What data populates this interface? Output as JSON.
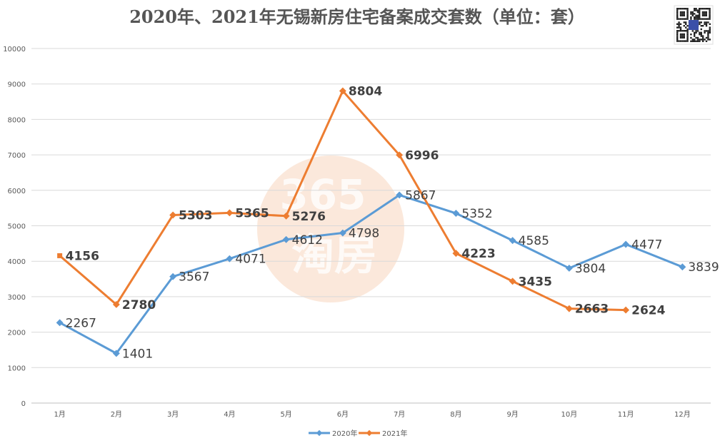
{
  "chart_data": {
    "type": "line",
    "title": "2020年、2021年无锡新房住宅备案成交套数（单位：套）",
    "categories": [
      "1月",
      "2月",
      "3月",
      "4月",
      "5月",
      "6月",
      "7月",
      "8月",
      "9月",
      "10月",
      "11月",
      "12月"
    ],
    "ylim": [
      0,
      10000
    ],
    "yticks": [
      0,
      1000,
      2000,
      3000,
      4000,
      5000,
      6000,
      7000,
      8000,
      9000,
      10000
    ],
    "grid": true,
    "legend_position": "bottom",
    "series": [
      {
        "name": "2020年",
        "color": "#5B9BD5",
        "values": [
          2267,
          1401,
          3567,
          4071,
          4612,
          4798,
          5867,
          5352,
          4585,
          3804,
          4477,
          3839
        ]
      },
      {
        "name": "2021年",
        "color": "#ED7D31",
        "values": [
          4156,
          2780,
          5303,
          5365,
          5276,
          8804,
          6996,
          4223,
          3435,
          2663,
          2624,
          null
        ]
      }
    ]
  },
  "watermark": {
    "text": "365淘房",
    "color": "#F2C6A8"
  },
  "qr_icon": "qr-code-icon"
}
